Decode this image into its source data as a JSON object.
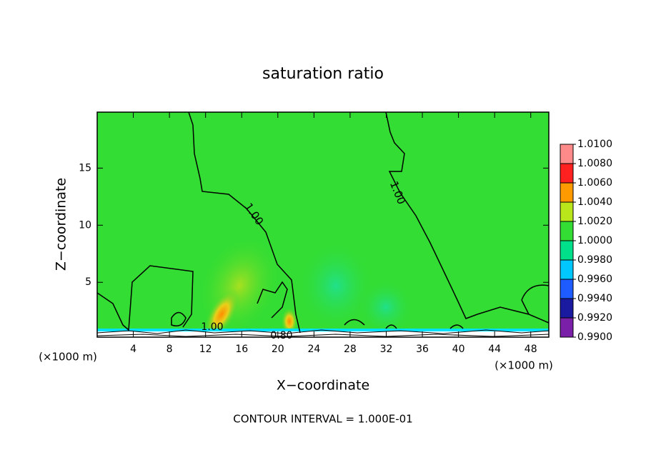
{
  "chart_data": {
    "type": "contour",
    "title": "saturation ratio",
    "xlabel": "X−coordinate",
    "ylabel": "Z−coordinate",
    "x_unit": "(×1000 m)",
    "xlim": [
      0,
      50
    ],
    "ylim": [
      0.2,
      19.9
    ],
    "xticks": [
      4,
      8,
      12,
      16,
      20,
      24,
      28,
      32,
      36,
      40,
      44,
      48
    ],
    "yticks": [
      5,
      10,
      15
    ],
    "field_color": "#33dd33",
    "colorbar": {
      "ticks": [
        {
          "value": 0.99,
          "label": "0.9900"
        },
        {
          "value": 0.992,
          "label": "0.9920"
        },
        {
          "value": 0.994,
          "label": "0.9940"
        },
        {
          "value": 0.996,
          "label": "0.9960"
        },
        {
          "value": 0.998,
          "label": "0.9980"
        },
        {
          "value": 1.0,
          "label": "1.0000"
        },
        {
          "value": 1.002,
          "label": "1.0020"
        },
        {
          "value": 1.004,
          "label": "1.0040"
        },
        {
          "value": 1.006,
          "label": "1.0060"
        },
        {
          "value": 1.008,
          "label": "1.0080"
        },
        {
          "value": 1.01,
          "label": "1.0100"
        }
      ],
      "colors": [
        "#7a1fa8",
        "#1a1aa0",
        "#1f5cff",
        "#00c8ff",
        "#00e08a",
        "#33dd33",
        "#b8e61a",
        "#ff9a00",
        "#ff2020",
        "#ff8a8a"
      ]
    },
    "contour_labels": [
      {
        "value": 1,
        "label": "1.00"
      },
      {
        "value": 0.8,
        "label": "0.80"
      }
    ],
    "annotation": "CONTOUR INTERVAL = 1.000E-01"
  }
}
